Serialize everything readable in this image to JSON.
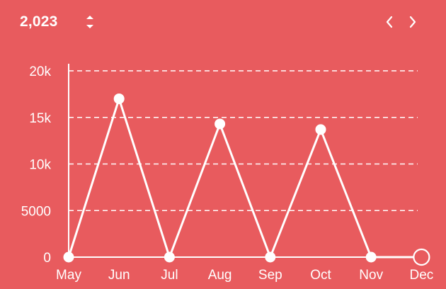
{
  "header": {
    "year": "2,023"
  },
  "icons": {
    "stepper": "up-down-chevron-icon",
    "prev": "chevron-left-icon",
    "next": "chevron-right-icon"
  },
  "colors": {
    "background": "#e85b5e",
    "foreground": "#ffffff"
  },
  "chart_data": {
    "type": "line",
    "categories": [
      "May",
      "Jun",
      "Jul",
      "Aug",
      "Sep",
      "Oct",
      "Nov",
      "Dec"
    ],
    "series": [
      {
        "values": [
          0,
          17000,
          0,
          14300,
          0,
          13700,
          0,
          0
        ]
      }
    ],
    "ylim": [
      0,
      20000
    ],
    "yticks": [
      0,
      5000,
      10000,
      15000,
      20000
    ],
    "ytick_labels": [
      "0",
      "5000",
      "10k",
      "15k",
      "20k"
    ],
    "grid": true,
    "selected_point": "Dec"
  }
}
